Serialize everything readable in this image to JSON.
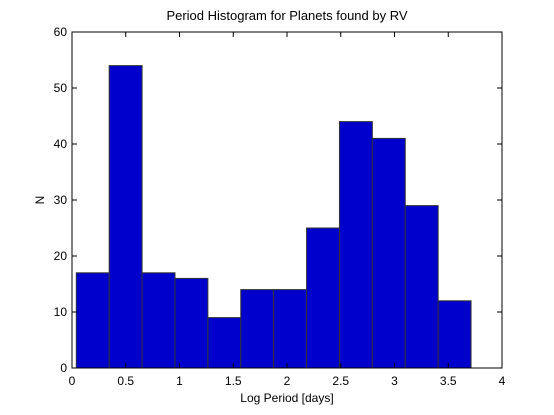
{
  "chart_data": {
    "type": "bar",
    "title": "Period Histogram for Planets found by RV",
    "xlabel": "Log Period [days]",
    "ylabel": "N",
    "xlim": [
      0,
      4
    ],
    "ylim": [
      0,
      60
    ],
    "xticks": [
      0,
      0.5,
      1,
      1.5,
      2,
      2.5,
      3,
      3.5,
      4
    ],
    "xtick_labels": [
      "0",
      "0.5",
      "1",
      "1.5",
      "2",
      "2.5",
      "3",
      "3.5",
      "4"
    ],
    "yticks": [
      0,
      10,
      20,
      30,
      40,
      50,
      60
    ],
    "ytick_labels": [
      "0",
      "10",
      "20",
      "30",
      "40",
      "50",
      "60"
    ],
    "bin_edges": [
      0.04,
      0.346,
      0.652,
      0.958,
      1.264,
      1.57,
      1.876,
      2.182,
      2.488,
      2.794,
      3.1,
      3.406,
      3.712
    ],
    "values": [
      17,
      54,
      17,
      16,
      9,
      14,
      14,
      25,
      44,
      41,
      29,
      12
    ],
    "colors": {
      "bar_fill": "#0000cc",
      "bar_edge": "#333333",
      "axes": "#000000"
    },
    "grid": false
  }
}
